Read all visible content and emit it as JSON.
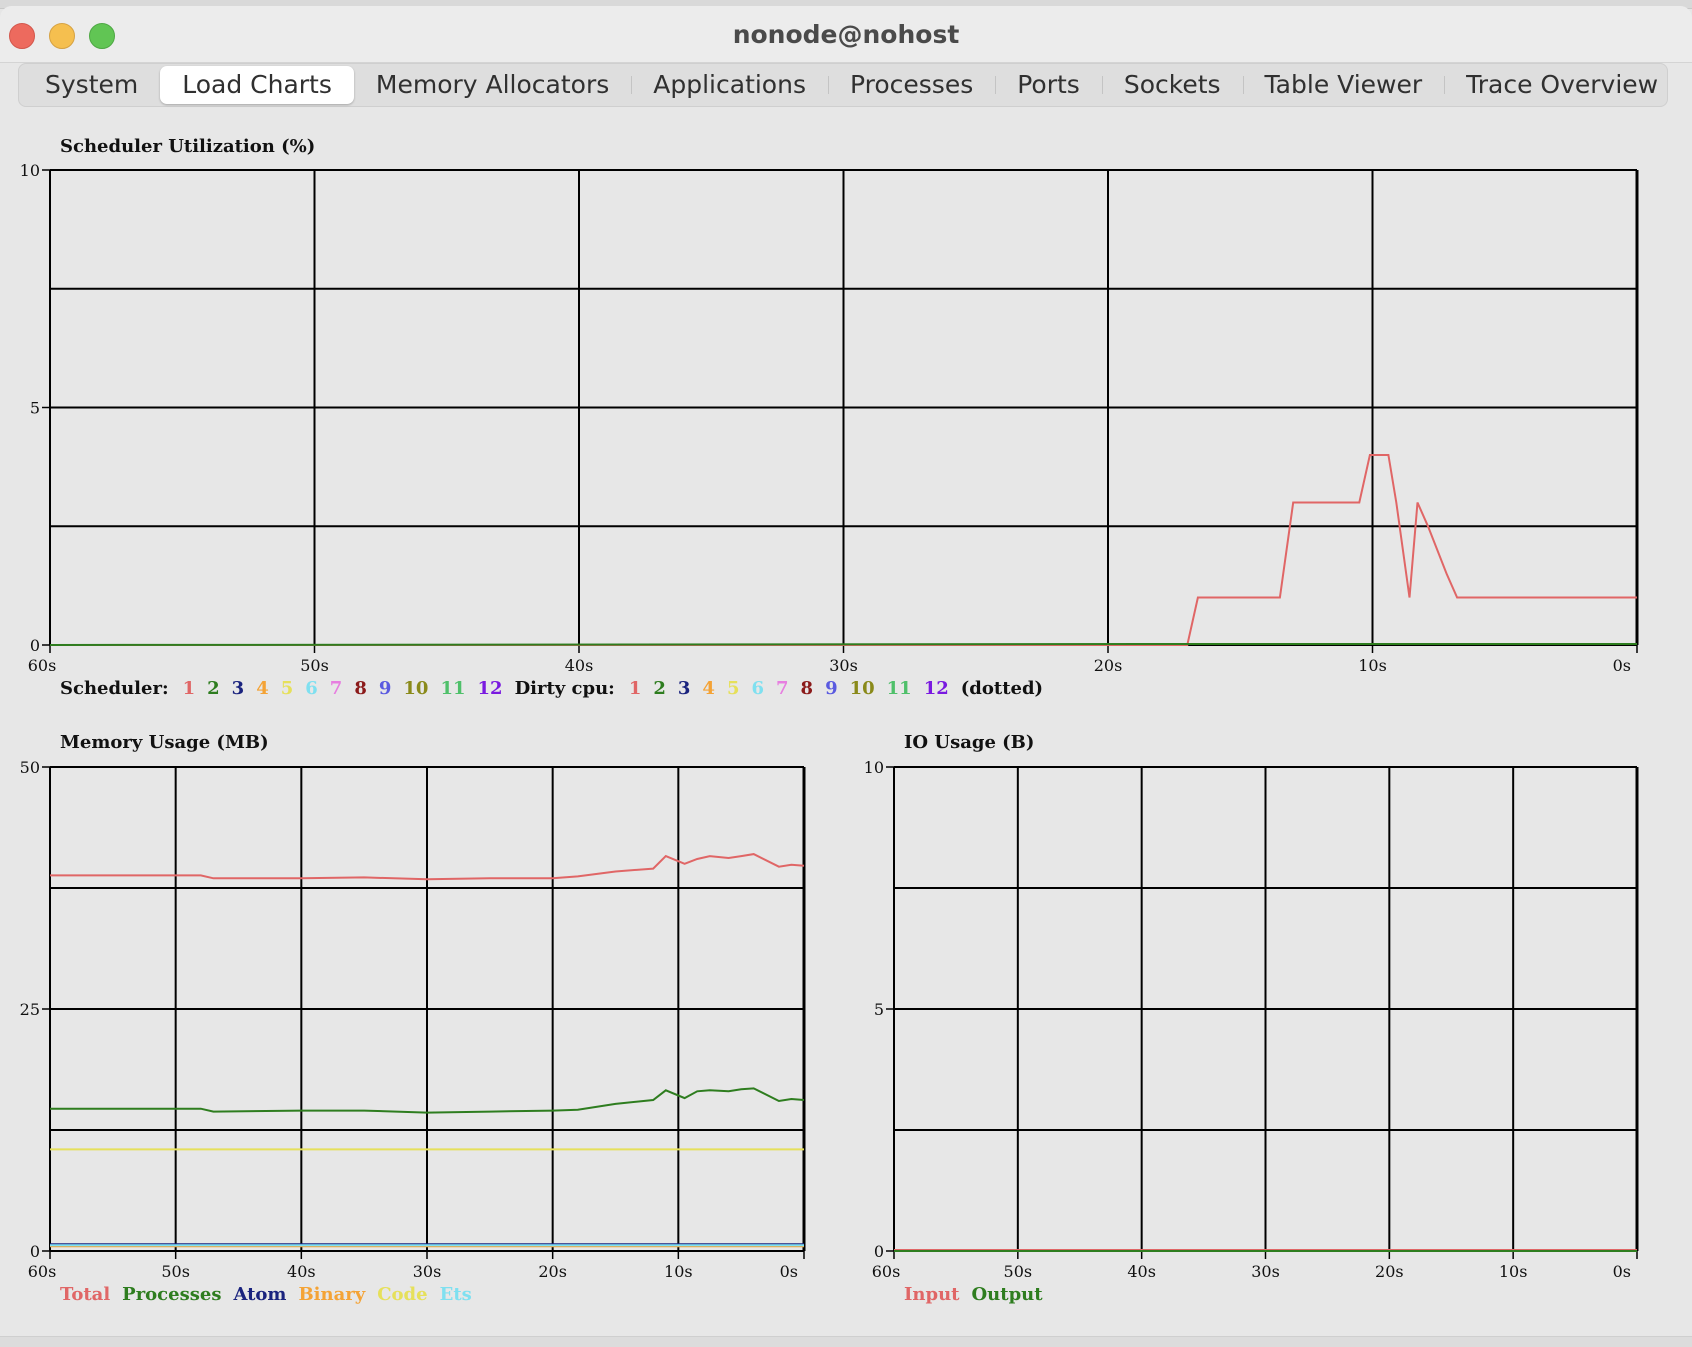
{
  "window": {
    "title": "nonode@nohost"
  },
  "tabs": [
    {
      "label": "System",
      "active": false
    },
    {
      "label": "Load Charts",
      "active": true
    },
    {
      "label": "Memory Allocators",
      "active": false
    },
    {
      "label": "Applications",
      "active": false
    },
    {
      "label": "Processes",
      "active": false
    },
    {
      "label": "Ports",
      "active": false
    },
    {
      "label": "Sockets",
      "active": false
    },
    {
      "label": "Table Viewer",
      "active": false
    },
    {
      "label": "Trace Overview",
      "active": false
    }
  ],
  "legends": {
    "scheduler_label": "Scheduler:",
    "dirty_label": "Dirty cpu:",
    "dotted_label": "(dotted)",
    "scheduler_items": [
      {
        "text": "1",
        "color": "#e06666"
      },
      {
        "text": "2",
        "color": "#2e7d1f"
      },
      {
        "text": "3",
        "color": "#1a237e"
      },
      {
        "text": "4",
        "color": "#f4a336"
      },
      {
        "text": "5",
        "color": "#e6e05a"
      },
      {
        "text": "6",
        "color": "#7fe0f0"
      },
      {
        "text": "7",
        "color": "#e77ee0"
      },
      {
        "text": "8",
        "color": "#8b1a1a"
      },
      {
        "text": "9",
        "color": "#5a5ae0"
      },
      {
        "text": "10",
        "color": "#8a8a1a"
      },
      {
        "text": "11",
        "color": "#4fc06a"
      },
      {
        "text": "12",
        "color": "#7a1ae0"
      }
    ],
    "memory_items": [
      {
        "text": "Total",
        "color": "#e06666"
      },
      {
        "text": "Processes",
        "color": "#2e7d1f"
      },
      {
        "text": "Atom",
        "color": "#1a237e"
      },
      {
        "text": "Binary",
        "color": "#f4a336"
      },
      {
        "text": "Code",
        "color": "#e6e05a"
      },
      {
        "text": "Ets",
        "color": "#7fe0f0"
      }
    ],
    "io_items": [
      {
        "text": "Input",
        "color": "#e06666"
      },
      {
        "text": "Output",
        "color": "#2e7d1f"
      }
    ]
  },
  "chart_data": [
    {
      "type": "line",
      "title": "Scheduler Utilization (%)",
      "xlabel": "",
      "ylabel": "",
      "xlim": [
        -60,
        0
      ],
      "ylim": [
        0,
        10
      ],
      "xticks": [
        "60s",
        "50s",
        "40s",
        "30s",
        "20s",
        "10s",
        "0s"
      ],
      "yticks": [
        "0",
        "5",
        "10"
      ],
      "grid": true,
      "series": [
        {
          "name": "1",
          "color": "#e06666",
          "x": [
            -60,
            -17,
            -16.6,
            -13.5,
            -13,
            -10.5,
            -10.1,
            -9.4,
            -9.1,
            -8.6,
            -8.3,
            -7.9,
            -7.2,
            -6.8,
            -6.4,
            0
          ],
          "y": [
            0,
            0,
            1,
            1,
            3,
            3,
            4,
            4,
            3,
            1,
            3,
            2.5,
            1.5,
            1,
            1,
            1
          ]
        },
        {
          "name": "2",
          "color": "#2e7d1f",
          "x": [
            -60,
            -17,
            0
          ],
          "y": [
            0,
            0.02,
            0.02
          ]
        }
      ]
    },
    {
      "type": "line",
      "title": "Memory Usage (MB)",
      "xlabel": "",
      "ylabel": "",
      "xlim": [
        -60,
        0
      ],
      "ylim": [
        0,
        50
      ],
      "xticks": [
        "60s",
        "50s",
        "40s",
        "30s",
        "20s",
        "10s",
        "0s"
      ],
      "yticks": [
        "0",
        "25",
        "50"
      ],
      "grid": true,
      "series": [
        {
          "name": "Total",
          "color": "#e06666",
          "x": [
            -60,
            -48,
            -47,
            -40,
            -35,
            -30,
            -25,
            -20,
            -18,
            -15,
            -12,
            -11,
            -9.5,
            -8.5,
            -7.5,
            -6,
            -5,
            -4,
            -2,
            -1,
            0
          ],
          "y": [
            38.8,
            38.8,
            38.5,
            38.5,
            38.6,
            38.4,
            38.5,
            38.5,
            38.7,
            39.2,
            39.5,
            40.8,
            40,
            40.5,
            40.8,
            40.6,
            40.8,
            41,
            39.7,
            39.9,
            39.8
          ]
        },
        {
          "name": "Processes",
          "color": "#2e7d1f",
          "x": [
            -60,
            -48,
            -47,
            -40,
            -35,
            -30,
            -25,
            -20,
            -18,
            -15,
            -12,
            -11,
            -9.5,
            -8.5,
            -7.5,
            -6,
            -5,
            -4,
            -2,
            -1,
            0
          ],
          "y": [
            14.7,
            14.7,
            14.4,
            14.5,
            14.5,
            14.3,
            14.4,
            14.5,
            14.6,
            15.2,
            15.6,
            16.6,
            15.8,
            16.5,
            16.6,
            16.5,
            16.7,
            16.8,
            15.5,
            15.7,
            15.6
          ]
        },
        {
          "name": "Atom",
          "color": "#1a237e",
          "x": [
            -60,
            0
          ],
          "y": [
            0.7,
            0.7
          ]
        },
        {
          "name": "Binary",
          "color": "#f4a336",
          "x": [
            -60,
            0
          ],
          "y": [
            0.5,
            0.5
          ]
        },
        {
          "name": "Code",
          "color": "#e6e05a",
          "x": [
            -60,
            0
          ],
          "y": [
            10.5,
            10.5
          ]
        },
        {
          "name": "Ets",
          "color": "#7fe0f0",
          "x": [
            -60,
            0
          ],
          "y": [
            0.6,
            0.6
          ]
        }
      ]
    },
    {
      "type": "line",
      "title": "IO Usage (B)",
      "xlabel": "",
      "ylabel": "",
      "xlim": [
        -60,
        0
      ],
      "ylim": [
        0,
        10
      ],
      "xticks": [
        "60s",
        "50s",
        "40s",
        "30s",
        "20s",
        "10s",
        "0s"
      ],
      "yticks": [
        "0",
        "5",
        "10"
      ],
      "grid": true,
      "series": [
        {
          "name": "Input",
          "color": "#e06666",
          "x": [
            -60,
            0
          ],
          "y": [
            0.02,
            0.02
          ]
        },
        {
          "name": "Output",
          "color": "#2e7d1f",
          "x": [
            -60,
            0
          ],
          "y": [
            0,
            0
          ]
        }
      ]
    }
  ]
}
